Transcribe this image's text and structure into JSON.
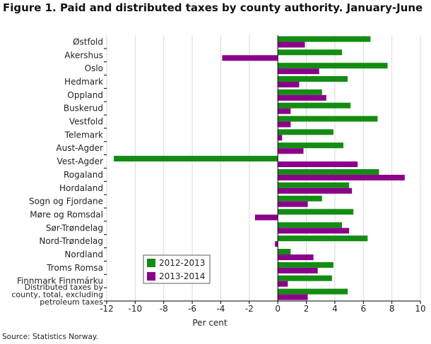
{
  "figure_title": "Figure 1. Paid and distributed taxes by county authority. January-June",
  "source": "Source: Statistics Norway.",
  "chart_data": {
    "type": "bar",
    "orientation": "horizontal",
    "title": "Figure 1. Paid and distributed taxes by county authority. January-June",
    "xlabel": "Per cent",
    "ylabel": "",
    "xlim": [
      -12,
      10
    ],
    "xticks": [
      -12,
      -10,
      -8,
      -6,
      -4,
      -2,
      0,
      2,
      4,
      6,
      8,
      10
    ],
    "grid": true,
    "legend_position": "bottom-left",
    "categories": [
      "Østfold",
      "Akershus",
      "Oslo",
      "Hedmark",
      "Oppland",
      "Buskerud",
      "Vestfold",
      "Telemark",
      "Aust-Agder",
      "Vest-Agder",
      "Rogaland",
      "Hordaland",
      "Sogn og Fjordane",
      "Møre og Romsdal",
      "Sør-Trøndelag",
      "Nord-Trøndelag",
      "Nordland",
      "Troms Romsa",
      "Finnmark Finnmárku",
      "Distributed taxes by county, total, excluding petroleum taxes"
    ],
    "category_lines": [
      [
        "Østfold"
      ],
      [
        "Akershus"
      ],
      [
        "Oslo"
      ],
      [
        "Hedmark"
      ],
      [
        "Oppland"
      ],
      [
        "Buskerud"
      ],
      [
        "Vestfold"
      ],
      [
        "Telemark"
      ],
      [
        "Aust-Agder"
      ],
      [
        "Vest-Agder"
      ],
      [
        "Rogaland"
      ],
      [
        "Hordaland"
      ],
      [
        "Sogn og Fjordane"
      ],
      [
        "Møre og Romsdal"
      ],
      [
        "Sør-Trøndelag"
      ],
      [
        "Nord-Trøndelag"
      ],
      [
        "Nordland"
      ],
      [
        "Troms Romsa"
      ],
      [
        "Finnmark Finnmárku"
      ],
      [
        "Distributed taxes by",
        "county, total, excluding",
        "petroleum taxes"
      ]
    ],
    "series": [
      {
        "name": "2012-2013",
        "color": "#138c13",
        "values": [
          6.5,
          4.5,
          7.7,
          4.9,
          3.1,
          5.1,
          7.0,
          3.9,
          4.6,
          -11.5,
          7.1,
          5.0,
          3.1,
          5.3,
          4.5,
          6.3,
          0.9,
          3.9,
          3.8,
          4.9
        ]
      },
      {
        "name": "2013-2014",
        "color": "#8b008b",
        "values": [
          1.9,
          -3.9,
          2.9,
          1.5,
          3.4,
          0.9,
          0.9,
          0.3,
          1.8,
          5.6,
          8.9,
          5.2,
          2.1,
          -1.6,
          5.0,
          -0.2,
          2.5,
          2.8,
          0.7,
          2.1
        ]
      }
    ]
  }
}
